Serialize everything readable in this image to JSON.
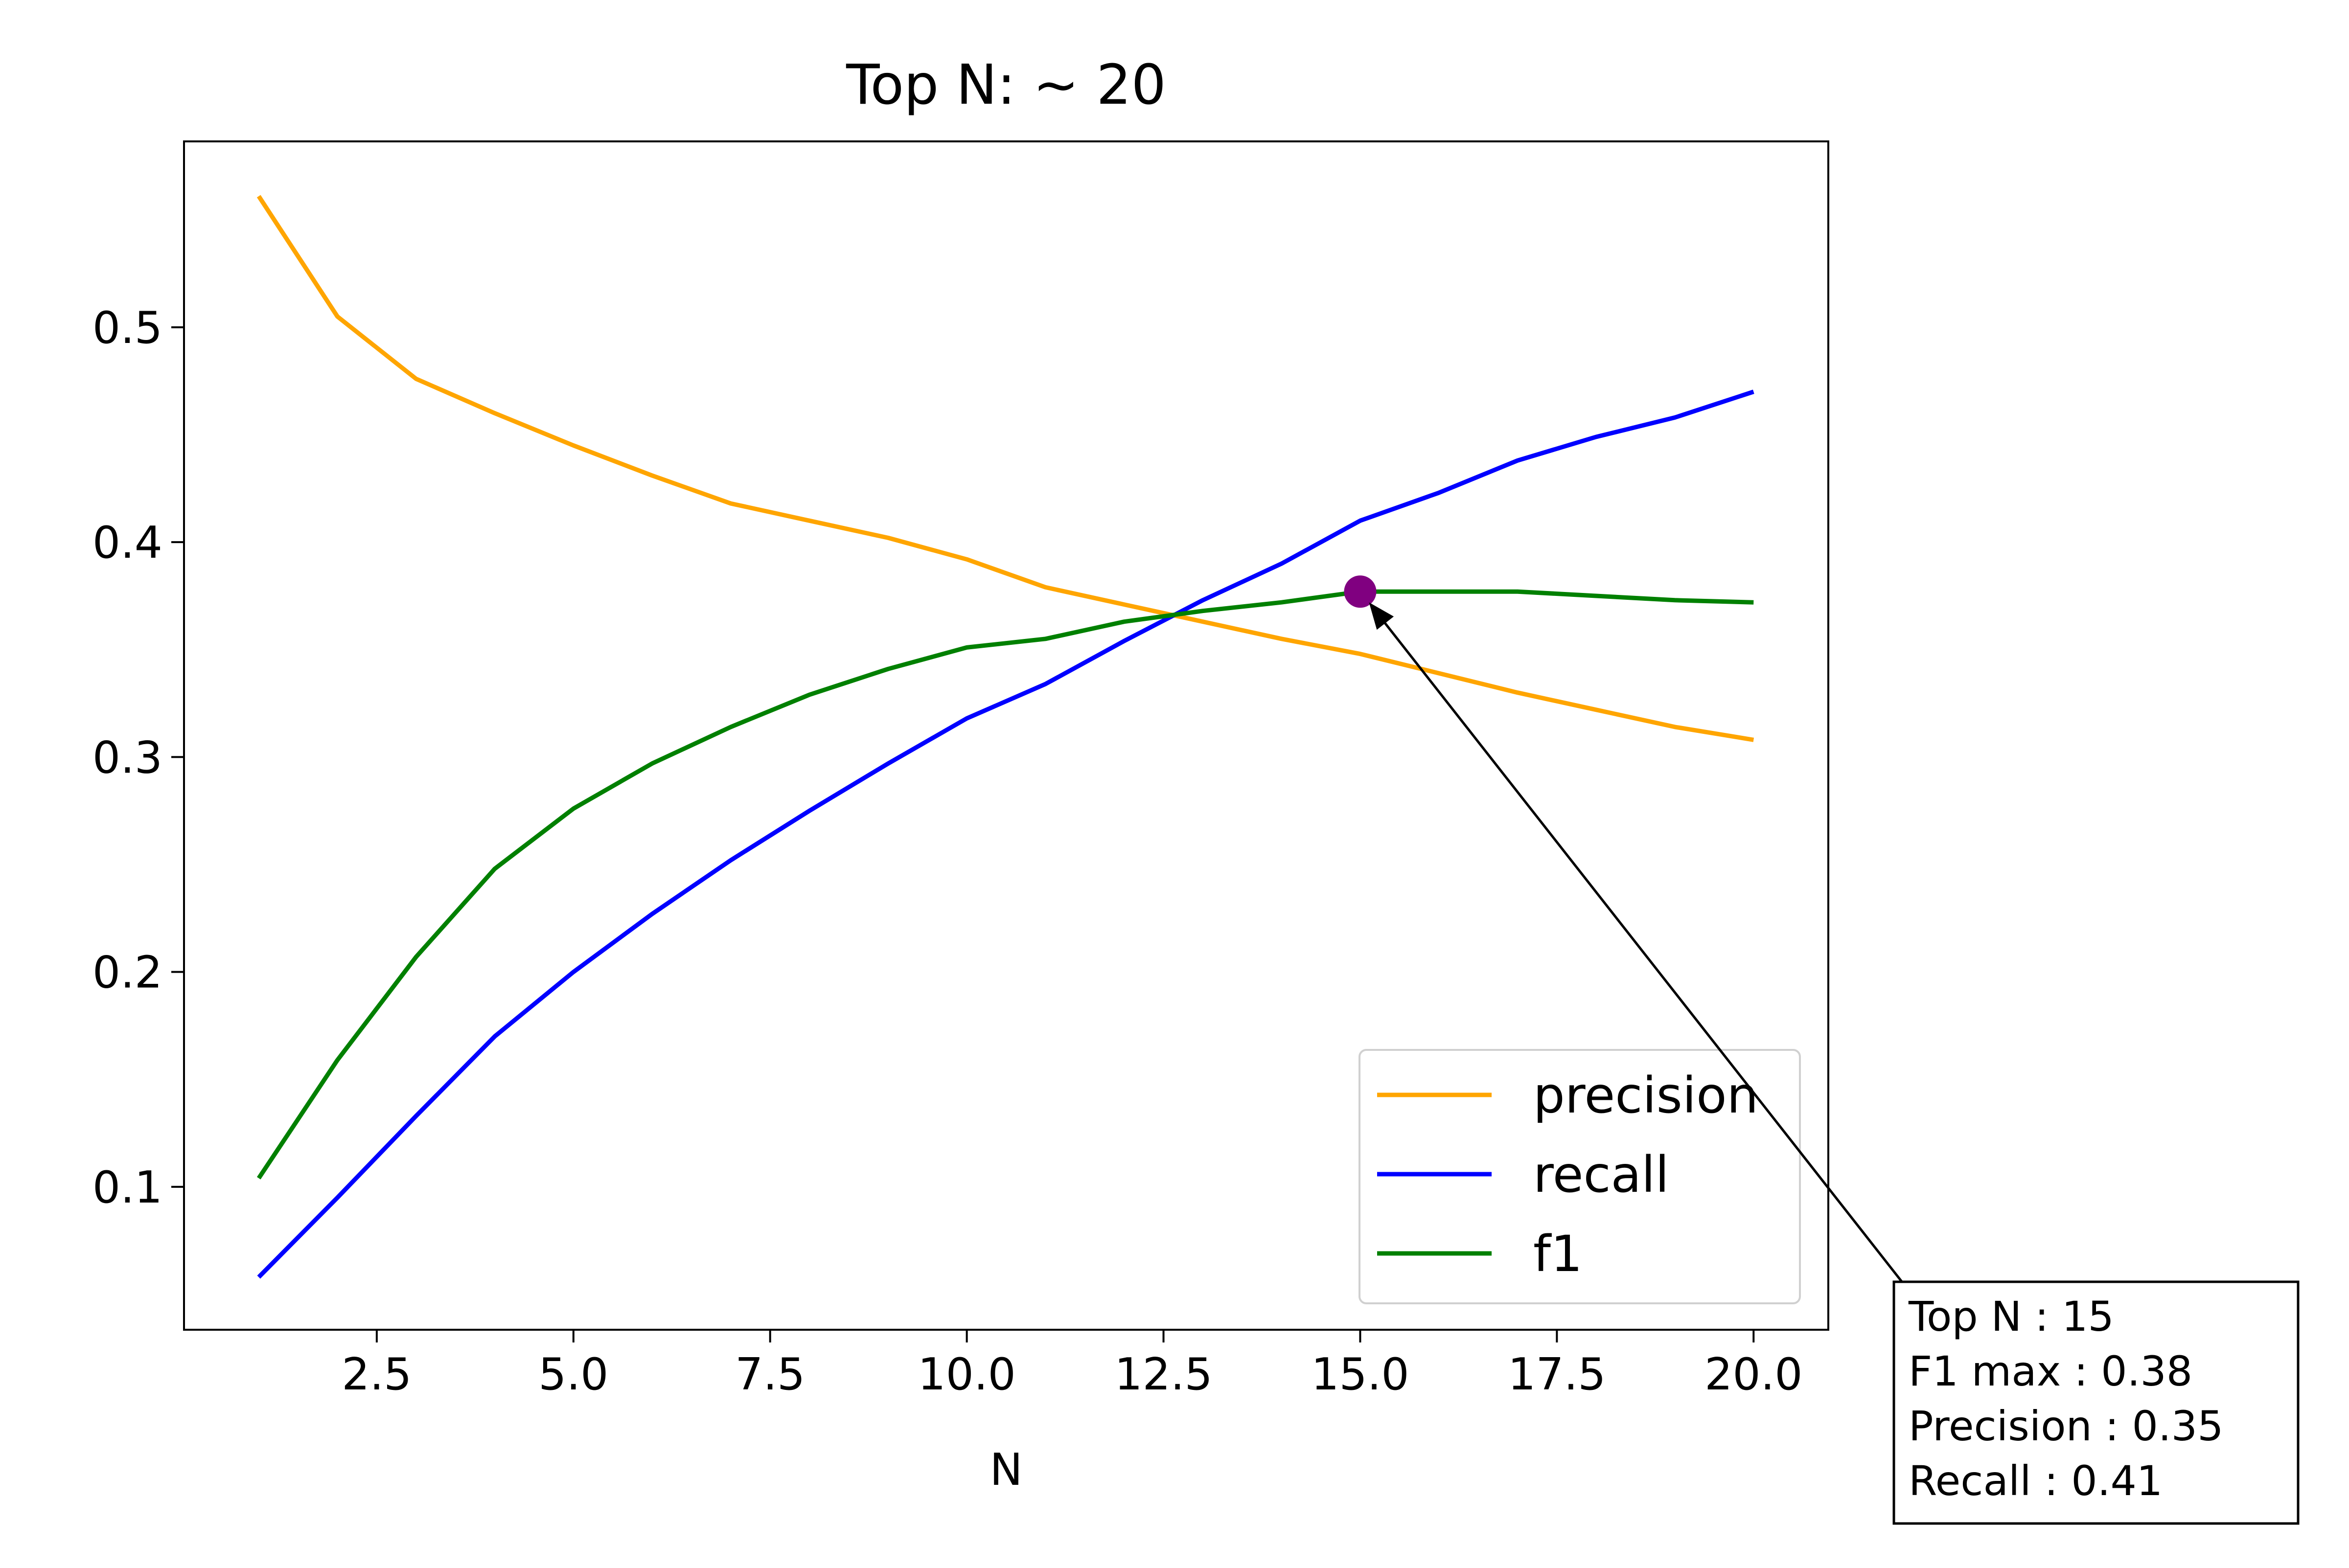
{
  "chart_data": {
    "type": "line",
    "title": "Top N: ~ 20",
    "xlabel": "N",
    "ylabel": "",
    "xlim": [
      0.05,
      20.95
    ],
    "ylim": [
      0.0335,
      0.5865
    ],
    "xticks": [
      2.5,
      5.0,
      7.5,
      10.0,
      12.5,
      15.0,
      17.5,
      20.0
    ],
    "xtick_labels": [
      "2.5",
      "5.0",
      "7.5",
      "10.0",
      "12.5",
      "15.0",
      "17.5",
      "20.0"
    ],
    "yticks": [
      0.1,
      0.2,
      0.3,
      0.4,
      0.5
    ],
    "ytick_labels": [
      "0.1",
      "0.2",
      "0.3",
      "0.4",
      "0.5"
    ],
    "grid": false,
    "legend_position": "lower-right",
    "x": [
      1,
      2,
      3,
      4,
      5,
      6,
      7,
      8,
      9,
      10,
      11,
      12,
      13,
      14,
      15,
      16,
      17,
      18,
      19,
      20
    ],
    "series": [
      {
        "name": "precision",
        "color": "#FFA500",
        "values": [
          0.561,
          0.505,
          0.476,
          0.46,
          0.445,
          0.431,
          0.418,
          0.41,
          0.402,
          0.392,
          0.379,
          0.371,
          0.363,
          0.355,
          0.348,
          0.339,
          0.33,
          0.322,
          0.314,
          0.308
        ]
      },
      {
        "name": "recall",
        "color": "#0000FF",
        "values": [
          0.058,
          0.095,
          0.133,
          0.17,
          0.2,
          0.227,
          0.252,
          0.275,
          0.297,
          0.318,
          0.334,
          0.354,
          0.373,
          0.39,
          0.41,
          0.423,
          0.438,
          0.449,
          0.458,
          0.47
        ]
      },
      {
        "name": "f1",
        "color": "#008000",
        "values": [
          0.104,
          0.159,
          0.207,
          0.248,
          0.276,
          0.297,
          0.314,
          0.329,
          0.341,
          0.351,
          0.355,
          0.363,
          0.368,
          0.372,
          0.377,
          0.377,
          0.377,
          0.375,
          0.373,
          0.372
        ]
      }
    ],
    "highlight_point": {
      "x": 15,
      "y": 0.377,
      "color": "#800080"
    },
    "annotation": {
      "lines": [
        "Top N : 15",
        "F1 max : 0.38",
        "Precision : 0.35",
        "Recall : 0.41"
      ]
    }
  }
}
